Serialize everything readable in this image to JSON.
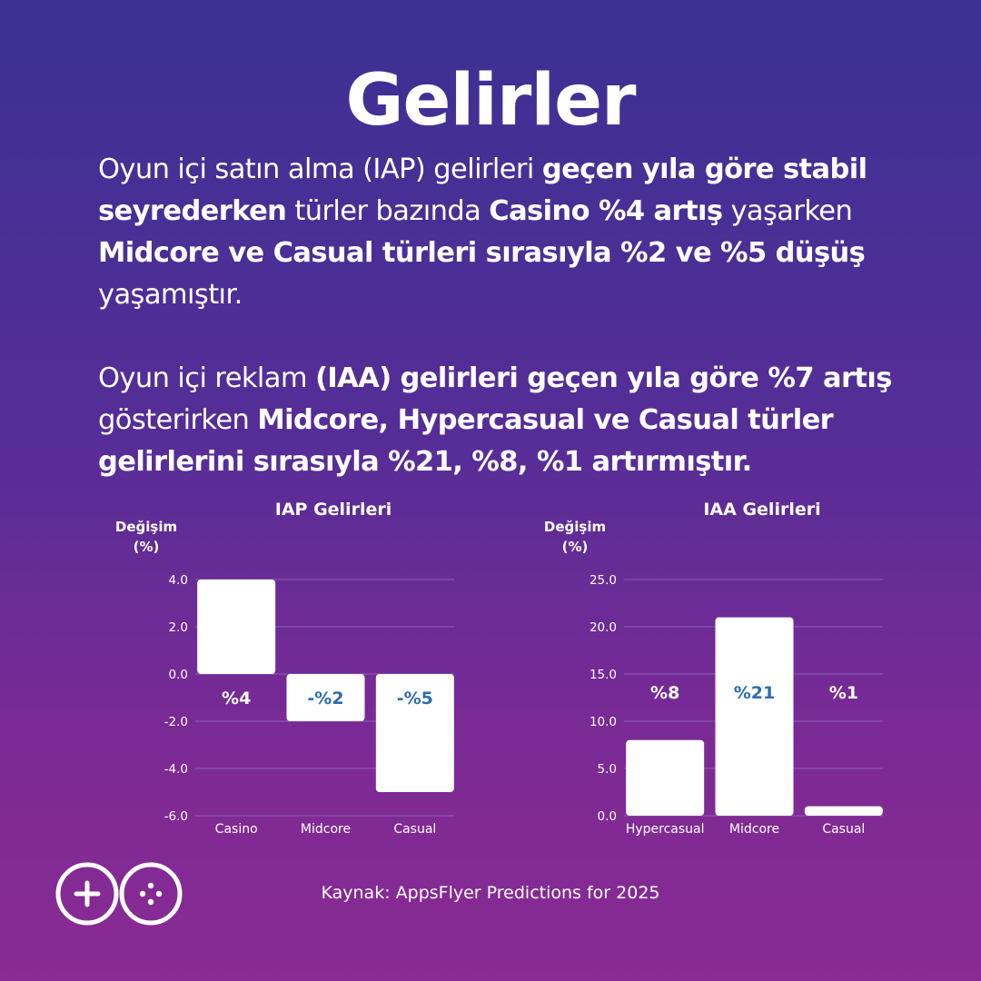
{
  "title": "Gelirler",
  "paragraph1": {
    "parts": [
      {
        "text": "Oyun içi satın alma (IAP) gelirleri ",
        "bold": false
      },
      {
        "text": "geçen yıla göre stabil seyrederken",
        "bold": true
      },
      {
        "text": " türler bazında ",
        "bold": false
      },
      {
        "text": "Casino %4 artış",
        "bold": true
      },
      {
        "text": " yaşarken ",
        "bold": false
      },
      {
        "text": "Midcore ve Casual türleri sırasıyla %2 ve %5 düşüş",
        "bold": true
      },
      {
        "text": " yaşamıştır.",
        "bold": false
      }
    ]
  },
  "paragraph2": {
    "parts": [
      {
        "text": "Oyun içi reklam ",
        "bold": false
      },
      {
        "text": "(IAA) gelirleri geçen yıla göre %7 artış",
        "bold": true
      },
      {
        "text": " gösterirken ",
        "bold": false
      },
      {
        "text": "Midcore, Hypercasual ve Casual türler gelirlerini sırasıyla %21, %8, %1 artırmıştır.",
        "bold": true
      }
    ]
  },
  "colors": {
    "label_dark": "#ffffff",
    "label_blue": "#2d6cb0",
    "bar": "#ffffff",
    "grid": "#8e5fb8"
  },
  "chart_data": [
    {
      "type": "bar",
      "title": "IAP Gelirleri",
      "ylabel_lines": [
        "Değişim",
        "(%)"
      ],
      "categories": [
        "Casino",
        "Midcore",
        "Casual"
      ],
      "values": [
        4,
        -2,
        -5
      ],
      "data_labels": [
        "%4",
        "-%2",
        "-%5"
      ],
      "data_label_colors": [
        "#ffffff",
        "#2d6cb0",
        "#2d6cb0"
      ],
      "yticks": [
        "4.0",
        "2.0",
        "0.0",
        "-2.0",
        "-4.0",
        "-6.0"
      ],
      "ylim": [
        -6,
        4
      ],
      "grid": true
    },
    {
      "type": "bar",
      "title": "IAA Gelirleri",
      "ylabel_lines": [
        "Değişim",
        "(%)"
      ],
      "categories": [
        "Hypercasual",
        "Midcore",
        "Casual"
      ],
      "values": [
        8,
        21,
        1
      ],
      "data_labels": [
        "%8",
        "%21",
        "%1"
      ],
      "data_label_colors": [
        "#ffffff",
        "#2d6cb0",
        "#ffffff"
      ],
      "yticks": [
        "25.0",
        "20.0",
        "15.0",
        "10.0",
        "5.0",
        "0.0"
      ],
      "ylim": [
        0,
        25
      ],
      "grid": true
    }
  ],
  "source": "Kaynak: AppsFlyer Predictions for 2025",
  "logo": {
    "icon": "game-controller-go-logo"
  }
}
